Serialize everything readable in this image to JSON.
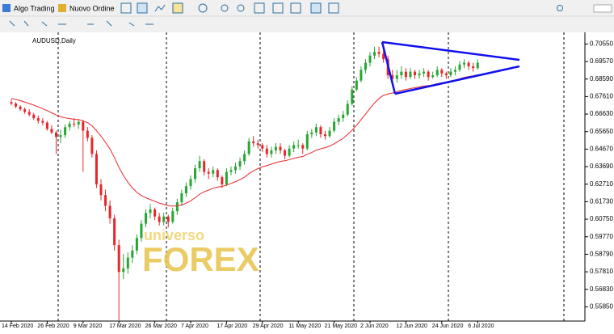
{
  "toolbar": {
    "algo": "Algo Trading",
    "order": "Nuovo Ordine"
  },
  "watermark": {
    "top": "universo",
    "main": "FOREX"
  },
  "chart_data": {
    "type": "candlestick",
    "title": "AUDUSD,Daily",
    "categories": [
      "14 Feb 2020",
      null,
      null,
      null,
      null,
      null,
      null,
      null,
      "26 Feb 2020",
      null,
      null,
      null,
      null,
      null,
      null,
      null,
      "9 Mar 2020",
      null,
      null,
      null,
      null,
      null,
      null,
      null,
      "17 Mar 2020",
      null,
      null,
      null,
      null,
      null,
      null,
      null,
      "26 Mar 2020",
      null,
      null,
      null,
      null,
      null,
      null,
      null,
      "7 Apr 2020",
      null,
      null,
      null,
      null,
      null,
      null,
      null,
      "17 Apr 2020",
      null,
      null,
      null,
      null,
      null,
      null,
      null,
      "29 Apr 2020",
      null,
      null,
      null,
      null,
      null,
      null,
      null,
      "11 May 2020",
      null,
      null,
      null,
      null,
      null,
      null,
      null,
      "21 May 2020",
      null,
      null,
      null,
      null,
      null,
      null,
      null,
      "2 Jun 2020",
      null,
      null,
      null,
      null,
      null,
      null,
      null,
      "12 Jun 2020",
      null,
      null,
      null,
      null,
      null,
      null,
      null,
      "24 Jun 2020",
      null,
      null,
      null,
      null,
      null,
      null,
      null,
      "6 Jul 2020"
    ],
    "ohlc": [
      [
        0.673,
        0.6745,
        0.6712,
        0.6722
      ],
      [
        0.6722,
        0.673,
        0.6695,
        0.6705
      ],
      [
        0.6705,
        0.6712,
        0.668,
        0.669
      ],
      [
        0.669,
        0.67,
        0.6665,
        0.6675
      ],
      [
        0.6675,
        0.669,
        0.665,
        0.666
      ],
      [
        0.666,
        0.667,
        0.663,
        0.664
      ],
      [
        0.664,
        0.6655,
        0.661,
        0.6625
      ],
      [
        0.6625,
        0.664,
        0.66,
        0.6615
      ],
      [
        0.6615,
        0.6625,
        0.657,
        0.658
      ],
      [
        0.658,
        0.66,
        0.655,
        0.656
      ],
      [
        0.656,
        0.657,
        0.644,
        0.6535
      ],
      [
        0.6535,
        0.6575,
        0.65,
        0.6545
      ],
      [
        0.6545,
        0.6605,
        0.653,
        0.659
      ],
      [
        0.659,
        0.6625,
        0.657,
        0.661
      ],
      [
        0.661,
        0.664,
        0.659,
        0.6605
      ],
      [
        0.6605,
        0.6635,
        0.658,
        0.662
      ],
      [
        0.662,
        0.663,
        0.634,
        0.657
      ],
      [
        0.657,
        0.659,
        0.651,
        0.653
      ],
      [
        0.653,
        0.6545,
        0.642,
        0.644
      ],
      [
        0.644,
        0.646,
        0.625,
        0.627
      ],
      [
        0.627,
        0.63,
        0.618,
        0.621
      ],
      [
        0.621,
        0.624,
        0.612,
        0.615
      ],
      [
        0.615,
        0.618,
        0.605,
        0.608
      ],
      [
        0.608,
        0.61,
        0.59,
        0.593
      ],
      [
        0.593,
        0.596,
        0.551,
        0.578
      ],
      [
        0.578,
        0.588,
        0.574,
        0.58
      ],
      [
        0.58,
        0.589,
        0.577,
        0.586
      ],
      [
        0.586,
        0.593,
        0.583,
        0.59
      ],
      [
        0.59,
        0.599,
        0.588,
        0.597
      ],
      [
        0.597,
        0.607,
        0.595,
        0.605
      ],
      [
        0.605,
        0.613,
        0.603,
        0.611
      ],
      [
        0.611,
        0.616,
        0.608,
        0.613
      ],
      [
        0.613,
        0.614,
        0.607,
        0.609
      ],
      [
        0.609,
        0.611,
        0.604,
        0.606
      ],
      [
        0.606,
        0.611,
        0.604,
        0.609
      ],
      [
        0.609,
        0.61,
        0.603,
        0.606
      ],
      [
        0.606,
        0.614,
        0.605,
        0.612
      ],
      [
        0.612,
        0.619,
        0.61,
        0.617
      ],
      [
        0.617,
        0.624,
        0.615,
        0.622
      ],
      [
        0.622,
        0.628,
        0.62,
        0.626
      ],
      [
        0.626,
        0.632,
        0.624,
        0.63
      ],
      [
        0.63,
        0.638,
        0.628,
        0.636
      ],
      [
        0.636,
        0.643,
        0.634,
        0.64
      ],
      [
        0.64,
        0.641,
        0.632,
        0.634
      ],
      [
        0.634,
        0.636,
        0.63,
        0.633
      ],
      [
        0.633,
        0.637,
        0.631,
        0.635
      ],
      [
        0.635,
        0.636,
        0.629,
        0.631
      ],
      [
        0.631,
        0.632,
        0.625,
        0.627
      ],
      [
        0.627,
        0.636,
        0.626,
        0.634
      ],
      [
        0.634,
        0.637,
        0.632,
        0.635
      ],
      [
        0.635,
        0.639,
        0.633,
        0.637
      ],
      [
        0.637,
        0.642,
        0.635,
        0.64
      ],
      [
        0.64,
        0.646,
        0.638,
        0.644
      ],
      [
        0.644,
        0.653,
        0.643,
        0.651
      ],
      [
        0.651,
        0.654,
        0.648,
        0.65
      ],
      [
        0.65,
        0.652,
        0.647,
        0.649
      ],
      [
        0.649,
        0.65,
        0.645,
        0.647
      ],
      [
        0.647,
        0.649,
        0.642,
        0.644
      ],
      [
        0.644,
        0.648,
        0.642,
        0.646
      ],
      [
        0.646,
        0.65,
        0.644,
        0.648
      ],
      [
        0.648,
        0.65,
        0.644,
        0.646
      ],
      [
        0.646,
        0.647,
        0.641,
        0.643
      ],
      [
        0.643,
        0.649,
        0.642,
        0.647
      ],
      [
        0.647,
        0.651,
        0.645,
        0.649
      ],
      [
        0.649,
        0.652,
        0.647,
        0.649
      ],
      [
        0.649,
        0.65,
        0.644,
        0.647
      ],
      [
        0.647,
        0.657,
        0.646,
        0.655
      ],
      [
        0.655,
        0.658,
        0.653,
        0.656
      ],
      [
        0.656,
        0.661,
        0.654,
        0.659
      ],
      [
        0.659,
        0.66,
        0.653,
        0.655
      ],
      [
        0.655,
        0.657,
        0.652,
        0.654
      ],
      [
        0.654,
        0.659,
        0.653,
        0.657
      ],
      [
        0.657,
        0.664,
        0.656,
        0.662
      ],
      [
        0.662,
        0.666,
        0.66,
        0.664
      ],
      [
        0.664,
        0.668,
        0.662,
        0.666
      ],
      [
        0.666,
        0.674,
        0.665,
        0.672
      ],
      [
        0.672,
        0.682,
        0.671,
        0.68
      ],
      [
        0.68,
        0.687,
        0.679,
        0.685
      ],
      [
        0.685,
        0.693,
        0.684,
        0.691
      ],
      [
        0.691,
        0.697,
        0.689,
        0.695
      ],
      [
        0.695,
        0.701,
        0.693,
        0.699
      ],
      [
        0.699,
        0.704,
        0.697,
        0.701
      ],
      [
        0.701,
        0.704,
        0.698,
        0.7
      ],
      [
        0.7,
        0.702,
        0.695,
        0.697
      ],
      [
        0.697,
        0.699,
        0.686,
        0.688
      ],
      [
        0.688,
        0.691,
        0.682,
        0.686
      ],
      [
        0.686,
        0.691,
        0.684,
        0.688
      ],
      [
        0.688,
        0.693,
        0.686,
        0.69
      ],
      [
        0.69,
        0.692,
        0.685,
        0.687
      ],
      [
        0.687,
        0.692,
        0.686,
        0.69
      ],
      [
        0.69,
        0.691,
        0.686,
        0.688
      ],
      [
        0.688,
        0.691,
        0.686,
        0.689
      ],
      [
        0.689,
        0.692,
        0.687,
        0.69
      ],
      [
        0.69,
        0.691,
        0.685,
        0.687
      ],
      [
        0.687,
        0.69,
        0.686,
        0.688
      ],
      [
        0.688,
        0.693,
        0.687,
        0.691
      ],
      [
        0.691,
        0.692,
        0.687,
        0.689
      ],
      [
        0.689,
        0.69,
        0.686,
        0.688
      ],
      [
        0.688,
        0.692,
        0.687,
        0.69
      ],
      [
        0.69,
        0.693,
        0.688,
        0.691
      ],
      [
        0.691,
        0.696,
        0.69,
        0.694
      ],
      [
        0.694,
        0.697,
        0.692,
        0.695
      ],
      [
        0.695,
        0.696,
        0.691,
        0.693
      ],
      [
        0.693,
        0.695,
        0.69,
        0.692
      ],
      [
        0.692,
        0.697,
        0.691,
        0.695
      ]
    ],
    "ma": [
      0.675,
      0.6745,
      0.6738,
      0.673,
      0.6722,
      0.6713,
      0.6703,
      0.6693,
      0.6682,
      0.667,
      0.6658,
      0.6648,
      0.6642,
      0.6638,
      0.6634,
      0.6632,
      0.6625,
      0.6615,
      0.6598,
      0.657,
      0.654,
      0.6505,
      0.6468,
      0.642,
      0.6365,
      0.632,
      0.6282,
      0.625,
      0.6225,
      0.6208,
      0.6195,
      0.6185,
      0.6175,
      0.6165,
      0.6158,
      0.615,
      0.6148,
      0.615,
      0.6155,
      0.6165,
      0.6178,
      0.6195,
      0.6215,
      0.6228,
      0.6238,
      0.6248,
      0.6255,
      0.6258,
      0.6266,
      0.6275,
      0.6285,
      0.6296,
      0.631,
      0.633,
      0.6345,
      0.6358,
      0.6368,
      0.6375,
      0.6383,
      0.6392,
      0.6398,
      0.6402,
      0.6408,
      0.6415,
      0.6422,
      0.6426,
      0.6438,
      0.6448,
      0.6461,
      0.6469,
      0.6475,
      0.6484,
      0.6497,
      0.6512,
      0.6527,
      0.6549,
      0.6573,
      0.66,
      0.6632,
      0.6663,
      0.6695,
      0.6725,
      0.675,
      0.6768,
      0.6775,
      0.6781,
      0.6788,
      0.6796,
      0.68,
      0.6806,
      0.681,
      0.6815,
      0.682,
      0.6822,
      0.6826,
      0.6833,
      0.6838,
      0.6841,
      0.6846,
      0.6852,
      0.686,
      0.6868,
      0.6873,
      0.6877,
      0.6883
    ],
    "up_color": "#26a633",
    "down_color": "#e8262a",
    "ma_color": "#e8262a",
    "ylim": [
      0.551,
      0.712
    ],
    "yticks": [
      {
        "value": 0.7055,
        "label": "0.70550"
      },
      {
        "value": 0.6957,
        "label": "0.69570"
      },
      {
        "value": 0.6859,
        "label": "0.68590"
      },
      {
        "value": 0.6761,
        "label": "0.67610"
      },
      {
        "value": 0.6663,
        "label": "0.66630"
      },
      {
        "value": 0.6565,
        "label": "0.65650"
      },
      {
        "value": 0.6467,
        "label": "0.64670"
      },
      {
        "value": 0.6369,
        "label": "0.63690"
      },
      {
        "value": 0.6271,
        "label": "0.62710"
      },
      {
        "value": 0.6173,
        "label": "0.61730"
      },
      {
        "value": 0.6075,
        "label": "0.60750"
      },
      {
        "value": 0.5977,
        "label": "0.59770"
      },
      {
        "value": 0.5879,
        "label": "0.58790"
      },
      {
        "value": 0.5781,
        "label": "0.57810"
      },
      {
        "value": 0.5683,
        "label": "0.56830"
      },
      {
        "value": 0.5585,
        "label": "0.55850"
      }
    ]
  }
}
